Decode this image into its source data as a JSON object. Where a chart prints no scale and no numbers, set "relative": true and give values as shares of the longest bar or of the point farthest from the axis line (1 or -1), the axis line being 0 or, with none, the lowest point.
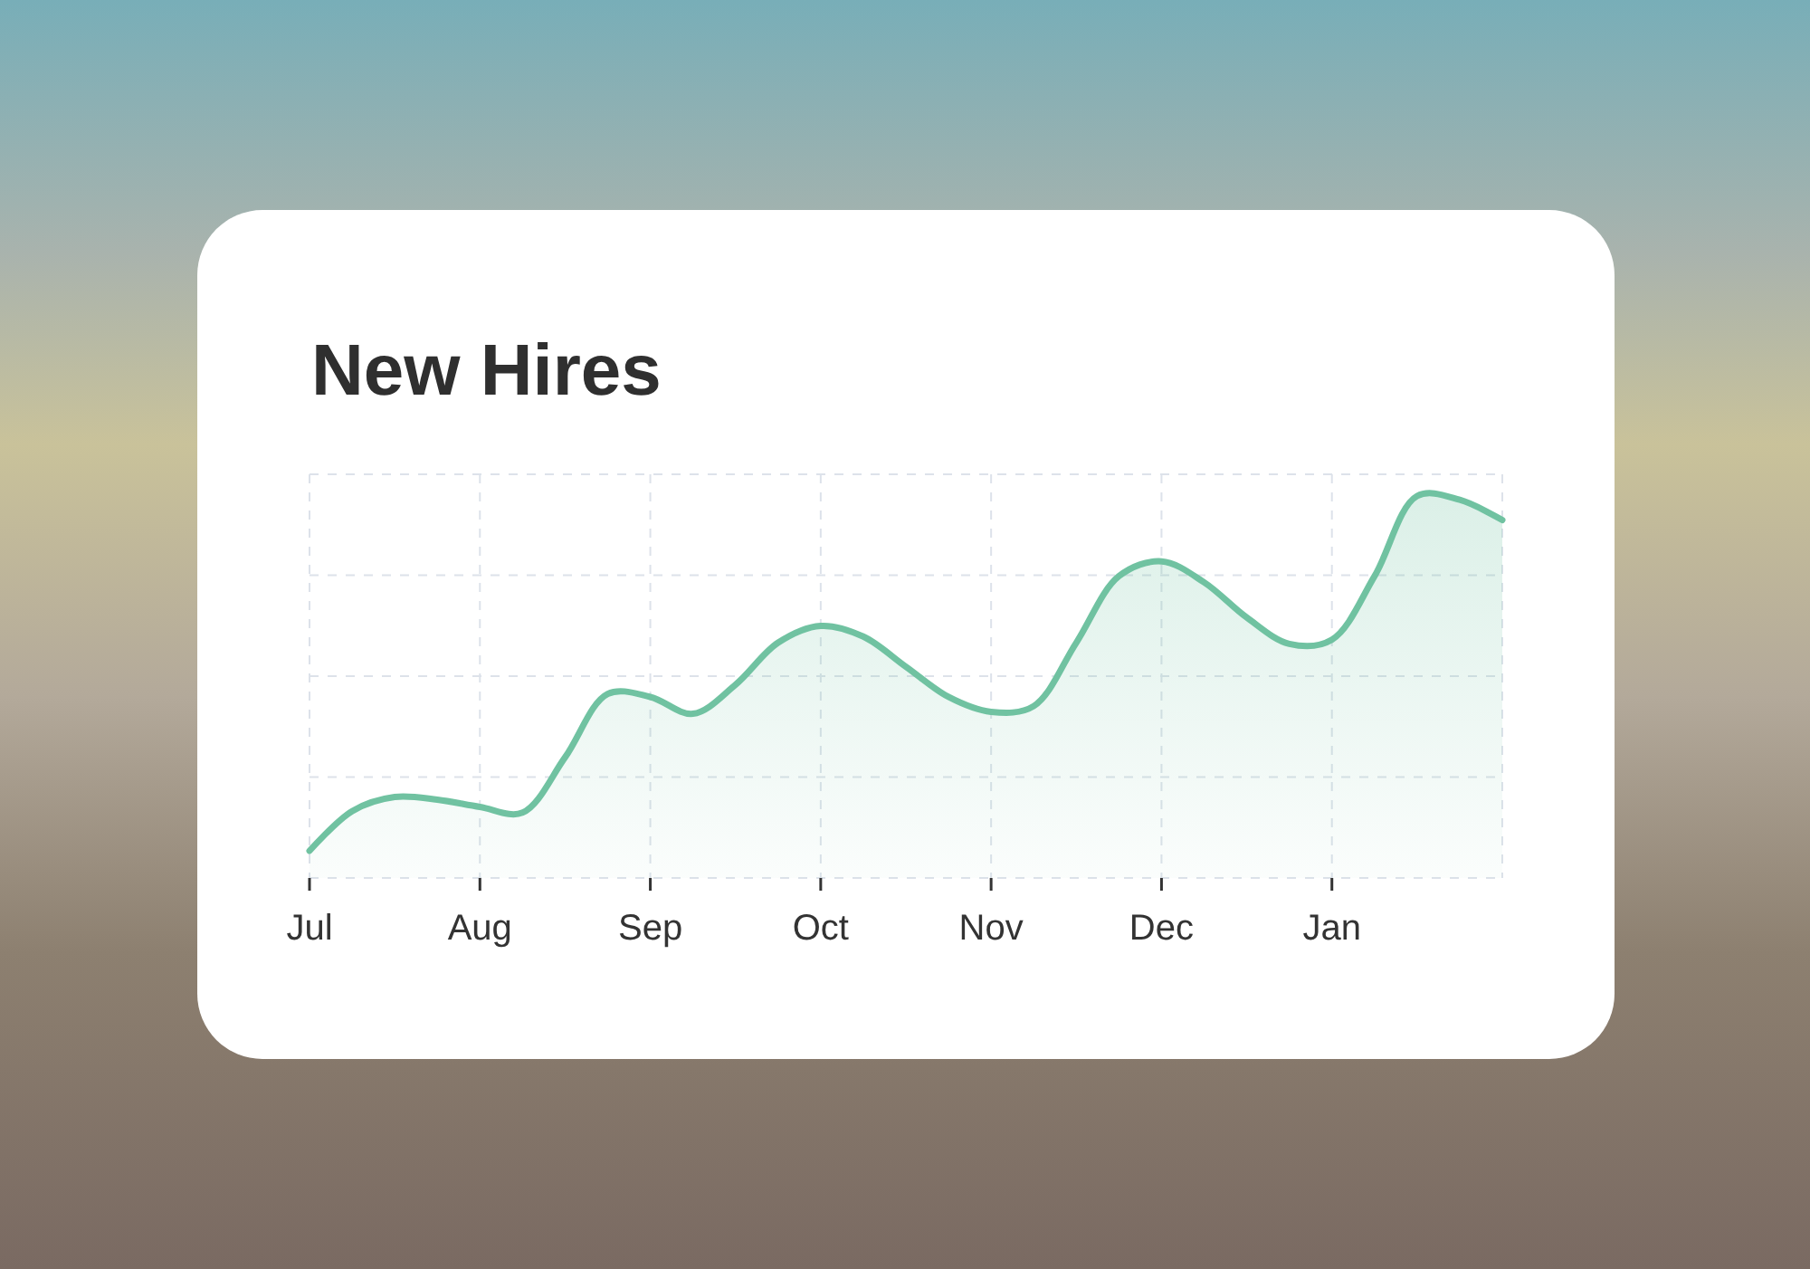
{
  "chart_data": {
    "type": "area",
    "title": "New Hires",
    "categories": [
      "Jul",
      null,
      null,
      null,
      "Aug",
      null,
      null,
      null,
      "Sep",
      null,
      null,
      null,
      "Oct",
      null,
      null,
      null,
      "Nov",
      null,
      null,
      null,
      "Dec",
      null,
      null,
      null,
      "Jan",
      null,
      null,
      null,
      null
    ],
    "values": [
      0.071,
      0.175,
      0.212,
      0.205,
      0.186,
      0.171,
      0.316,
      0.482,
      0.474,
      0.43,
      0.506,
      0.616,
      0.66,
      0.632,
      0.553,
      0.474,
      0.435,
      0.45,
      0.616,
      0.79,
      0.829,
      0.774,
      0.682,
      0.613,
      0.624,
      0.79,
      1,
      0.99,
      0.937
    ],
    "color": "#70c2a1",
    "relative": true,
    "grid": true
  }
}
